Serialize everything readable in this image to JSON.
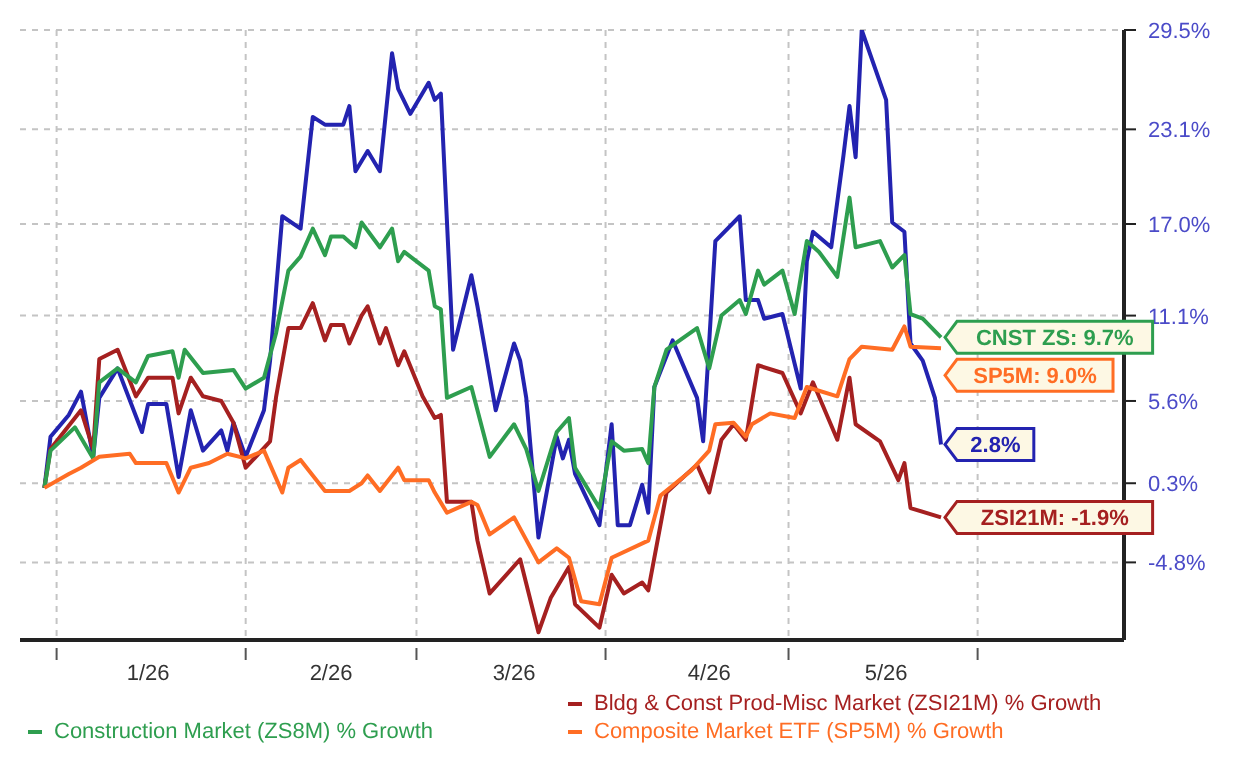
{
  "chart_data": {
    "type": "line",
    "xlim": [
      "2025-12-26",
      "2026-06-25"
    ],
    "xticks": [
      {
        "value": "2026-01-01",
        "label": null
      },
      {
        "value": "2026-01-16",
        "label": "1/26"
      },
      {
        "value": "2026-02-01",
        "label": null
      },
      {
        "value": "2026-02-15",
        "label": "2/26"
      },
      {
        "value": "2026-03-01",
        "label": null
      },
      {
        "value": "2026-03-17",
        "label": "3/26"
      },
      {
        "value": "2026-04-01",
        "label": null
      },
      {
        "value": "2026-04-18",
        "label": "4/26"
      },
      {
        "value": "2026-05-01",
        "label": null
      },
      {
        "value": "2026-05-17",
        "label": "5/26"
      },
      {
        "value": "2026-06-01",
        "label": null
      }
    ],
    "ylim": [
      -9.8,
      29.5
    ],
    "yticks": [
      {
        "value": -4.8,
        "label": "-4.8%"
      },
      {
        "value": 0.3,
        "label": "0.3%"
      },
      {
        "value": 5.6,
        "label": "5.6%"
      },
      {
        "value": 11.1,
        "label": "11.1%"
      },
      {
        "value": 17.0,
        "label": "17.0%"
      },
      {
        "value": 23.1,
        "label": "23.1%"
      },
      {
        "value": 29.5,
        "label": "29.5%"
      }
    ],
    "grid": true,
    "legend": "bottom",
    "marker": "none",
    "line_style": "solid",
    "annotations": [
      {
        "text": "CNST ZS: 9.7%",
        "x": "2026-05-26",
        "y": 9.7
      },
      {
        "text": "SP5M: 9.0%",
        "x": "2026-05-26",
        "y": 9.0
      },
      {
        "text": "2.8%",
        "x": "2026-05-26",
        "y": 2.8
      },
      {
        "text": "ZSI21M: -1.9%",
        "x": "2026-05-26",
        "y": -1.9
      }
    ],
    "series": [
      {
        "color": "#2323b0",
        "x": [
          "2025-12-30",
          "2025-12-31",
          "2026-01-03",
          "2026-01-05",
          "2026-01-07",
          "2026-01-08",
          "2026-01-11",
          "2026-01-15",
          "2026-01-16",
          "2026-01-19",
          "2026-01-21",
          "2026-01-23",
          "2026-01-25",
          "2026-01-28",
          "2026-01-29",
          "2026-01-30",
          "2026-02-01",
          "2026-02-04",
          "2026-02-05",
          "2026-02-07",
          "2026-02-10",
          "2026-02-12",
          "2026-02-14",
          "2026-02-17",
          "2026-02-18",
          "2026-02-19",
          "2026-02-21",
          "2026-02-23",
          "2026-02-25",
          "2026-02-26",
          "2026-02-28",
          "2026-03-03",
          "2026-03-04",
          "2026-03-05",
          "2026-03-07",
          "2026-03-10",
          "2026-03-11",
          "2026-03-14",
          "2026-03-17",
          "2026-03-18",
          "2026-03-19",
          "2026-03-21",
          "2026-03-24",
          "2026-03-25",
          "2026-03-26",
          "2026-03-27",
          "2026-03-31",
          "2026-04-02",
          "2026-04-03",
          "2026-04-05",
          "2026-04-07",
          "2026-04-08",
          "2026-04-09",
          "2026-04-12",
          "2026-04-16",
          "2026-04-17",
          "2026-04-19",
          "2026-04-23",
          "2026-04-24",
          "2026-04-26",
          "2026-04-27",
          "2026-04-30",
          "2026-05-03",
          "2026-05-04",
          "2026-05-05",
          "2026-05-08",
          "2026-05-10",
          "2026-05-11",
          "2026-05-12",
          "2026-05-13",
          "2026-05-17",
          "2026-05-18",
          "2026-05-20",
          "2026-05-21",
          "2026-05-23",
          "2026-05-25",
          "2026-05-26"
        ],
        "values": [
          0,
          3.3,
          4.7,
          6.2,
          2.0,
          5.8,
          7.7,
          3.6,
          5.4,
          5.4,
          0.7,
          5.0,
          2.4,
          3.7,
          2.4,
          4.2,
          2.0,
          5.0,
          8.2,
          17.5,
          16.7,
          23.9,
          23.4,
          23.4,
          24.6,
          20.4,
          21.7,
          20.4,
          28.0,
          25.7,
          24.1,
          26.1,
          25.0,
          25.4,
          8.9,
          13.7,
          11.7,
          5.0,
          9.3,
          8.2,
          5.8,
          -3.2,
          3.3,
          1.9,
          3.1,
          0.9,
          -2.4,
          4.1,
          -2.4,
          -2.4,
          0.2,
          -1.6,
          6.5,
          9.5,
          5.8,
          3.0,
          15.9,
          17.5,
          12.1,
          12.1,
          10.9,
          11.2,
          6.4,
          14.6,
          16.5,
          15.5,
          21.4,
          24.6,
          21.3,
          29.5,
          25.0,
          17.1,
          16.5,
          9.3,
          8.2,
          5.8,
          2.8
        ]
      },
      {
        "name": "Bldg & Const Prod-Misc Market (ZSI21M) % Growth",
        "color": "#a52020",
        "x": [
          "2025-12-30",
          "2025-12-31",
          "2026-01-05",
          "2026-01-07",
          "2026-01-08",
          "2026-01-11",
          "2026-01-14",
          "2026-01-16",
          "2026-01-20",
          "2026-01-21",
          "2026-01-23",
          "2026-01-25",
          "2026-01-28",
          "2026-01-30",
          "2026-02-01",
          "2026-02-05",
          "2026-02-06",
          "2026-02-08",
          "2026-02-10",
          "2026-02-12",
          "2026-02-14",
          "2026-02-15",
          "2026-02-17",
          "2026-02-18",
          "2026-02-20",
          "2026-02-21",
          "2026-02-23",
          "2026-02-24",
          "2026-02-26",
          "2026-02-27",
          "2026-03-02",
          "2026-03-04",
          "2026-03-05",
          "2026-03-06",
          "2026-03-10",
          "2026-03-11",
          "2026-03-13",
          "2026-03-18",
          "2026-03-21",
          "2026-03-23",
          "2026-03-26",
          "2026-03-27",
          "2026-03-31",
          "2026-04-02",
          "2026-04-04",
          "2026-04-07",
          "2026-04-08",
          "2026-04-11",
          "2026-04-16",
          "2026-04-18",
          "2026-04-20",
          "2026-04-22",
          "2026-04-24",
          "2026-04-26",
          "2026-04-30",
          "2026-05-03",
          "2026-05-05",
          "2026-05-09",
          "2026-05-11",
          "2026-05-12",
          "2026-05-16",
          "2026-05-19",
          "2026-05-20",
          "2026-05-21",
          "2026-05-26"
        ],
        "values": [
          0,
          2.5,
          5.0,
          2.5,
          8.3,
          8.9,
          5.9,
          7.1,
          7.1,
          4.8,
          7.1,
          5.9,
          5.6,
          4.2,
          1.3,
          3.0,
          5.9,
          10.3,
          10.3,
          11.9,
          9.5,
          10.5,
          10.5,
          9.3,
          11.1,
          11.7,
          9.3,
          10.3,
          7.9,
          8.8,
          5.9,
          4.5,
          4.7,
          -0.9,
          -0.9,
          -3.4,
          -6.8,
          -4.6,
          -9.3,
          -7.1,
          -5.1,
          -7.5,
          -9.0,
          -5.6,
          -6.8,
          -6.1,
          -6.6,
          -0.3,
          1.5,
          -0.3,
          3.1,
          4.1,
          3.1,
          7.9,
          7.4,
          4.8,
          6.8,
          3.1,
          7.1,
          4.1,
          3.0,
          0.5,
          1.6,
          -1.3,
          -1.9
        ]
      },
      {
        "name": "Construction Market (ZS8M) % Growth",
        "color": "#2e9e4f",
        "x": [
          "2025-12-30",
          "2025-12-31",
          "2026-01-04",
          "2026-01-07",
          "2026-01-08",
          "2026-01-11",
          "2026-01-14",
          "2026-01-16",
          "2026-01-20",
          "2026-01-21",
          "2026-01-22",
          "2026-01-25",
          "2026-01-30",
          "2026-02-01",
          "2026-02-04",
          "2026-02-06",
          "2026-02-08",
          "2026-02-10",
          "2026-02-12",
          "2026-02-14",
          "2026-02-15",
          "2026-02-17",
          "2026-02-19",
          "2026-02-20",
          "2026-02-23",
          "2026-02-25",
          "2026-02-26",
          "2026-02-27",
          "2026-03-03",
          "2026-03-04",
          "2026-03-05",
          "2026-03-06",
          "2026-03-10",
          "2026-03-11",
          "2026-03-13",
          "2026-03-17",
          "2026-03-19",
          "2026-03-21",
          "2026-03-24",
          "2026-03-26",
          "2026-03-27",
          "2026-03-31",
          "2026-04-02",
          "2026-04-04",
          "2026-04-07",
          "2026-04-08",
          "2026-04-09",
          "2026-04-11",
          "2026-04-16",
          "2026-04-18",
          "2026-04-20",
          "2026-04-23",
          "2026-04-24",
          "2026-04-26",
          "2026-04-27",
          "2026-04-30",
          "2026-05-02",
          "2026-05-04",
          "2026-05-06",
          "2026-05-09",
          "2026-05-11",
          "2026-05-12",
          "2026-05-16",
          "2026-05-18",
          "2026-05-20",
          "2026-05-21",
          "2026-05-23",
          "2026-05-26"
        ],
        "values": [
          0,
          2.4,
          3.9,
          1.9,
          6.8,
          7.7,
          6.8,
          8.5,
          8.8,
          7.1,
          8.9,
          7.4,
          7.6,
          6.4,
          7.1,
          10.0,
          14.0,
          14.9,
          16.7,
          15.0,
          16.2,
          16.2,
          15.5,
          17.1,
          15.5,
          16.7,
          14.6,
          15.2,
          14.0,
          11.7,
          11.5,
          5.8,
          6.5,
          5.0,
          2.0,
          4.1,
          2.5,
          -0.2,
          3.6,
          4.5,
          1.3,
          -1.3,
          3.0,
          2.4,
          2.5,
          1.6,
          6.5,
          8.9,
          10.3,
          7.7,
          11.1,
          12.1,
          11.2,
          14.0,
          13.1,
          14.0,
          11.2,
          15.9,
          15.2,
          13.6,
          18.7,
          15.5,
          15.9,
          14.2,
          15.0,
          11.2,
          10.9,
          9.7
        ]
      },
      {
        "name": "Composite Market ETF (SP5M) % Growth",
        "color": "#ff6d24",
        "x": [
          "2025-12-30",
          "2026-01-03",
          "2026-01-05",
          "2026-01-08",
          "2026-01-13",
          "2026-01-14",
          "2026-01-19",
          "2026-01-21",
          "2026-01-23",
          "2026-01-26",
          "2026-01-29",
          "2026-02-01",
          "2026-02-04",
          "2026-02-07",
          "2026-02-08",
          "2026-02-10",
          "2026-02-14",
          "2026-02-18",
          "2026-02-20",
          "2026-02-21",
          "2026-02-23",
          "2026-02-26",
          "2026-02-27",
          "2026-03-03",
          "2026-03-04",
          "2026-03-06",
          "2026-03-10",
          "2026-03-11",
          "2026-03-13",
          "2026-03-17",
          "2026-03-21",
          "2026-03-24",
          "2026-03-26",
          "2026-03-28",
          "2026-03-31",
          "2026-04-02",
          "2026-04-08",
          "2026-04-10",
          "2026-04-15",
          "2026-04-18",
          "2026-04-19",
          "2026-04-22",
          "2026-04-24",
          "2026-04-25",
          "2026-04-28",
          "2026-05-02",
          "2026-05-04",
          "2026-05-09",
          "2026-05-11",
          "2026-05-13",
          "2026-05-18",
          "2026-05-20",
          "2026-05-21",
          "2026-05-26"
        ],
        "values": [
          0,
          0.9,
          1.3,
          2.0,
          2.2,
          1.6,
          1.6,
          -0.3,
          1.3,
          1.6,
          2.2,
          1.9,
          2.4,
          -0.3,
          1.3,
          1.8,
          -0.2,
          -0.2,
          0.3,
          0.8,
          -0.2,
          1.3,
          0.5,
          0.5,
          -0.3,
          -1.6,
          -0.9,
          -1.1,
          -3.0,
          -1.9,
          -4.8,
          -3.9,
          -4.5,
          -7.3,
          -7.5,
          -4.5,
          -3.4,
          -0.5,
          1.1,
          2.4,
          4.1,
          4.2,
          3.3,
          4.1,
          4.8,
          4.5,
          6.5,
          5.9,
          8.3,
          9.1,
          8.9,
          10.4,
          9.1,
          9.0
        ]
      }
    ]
  }
}
